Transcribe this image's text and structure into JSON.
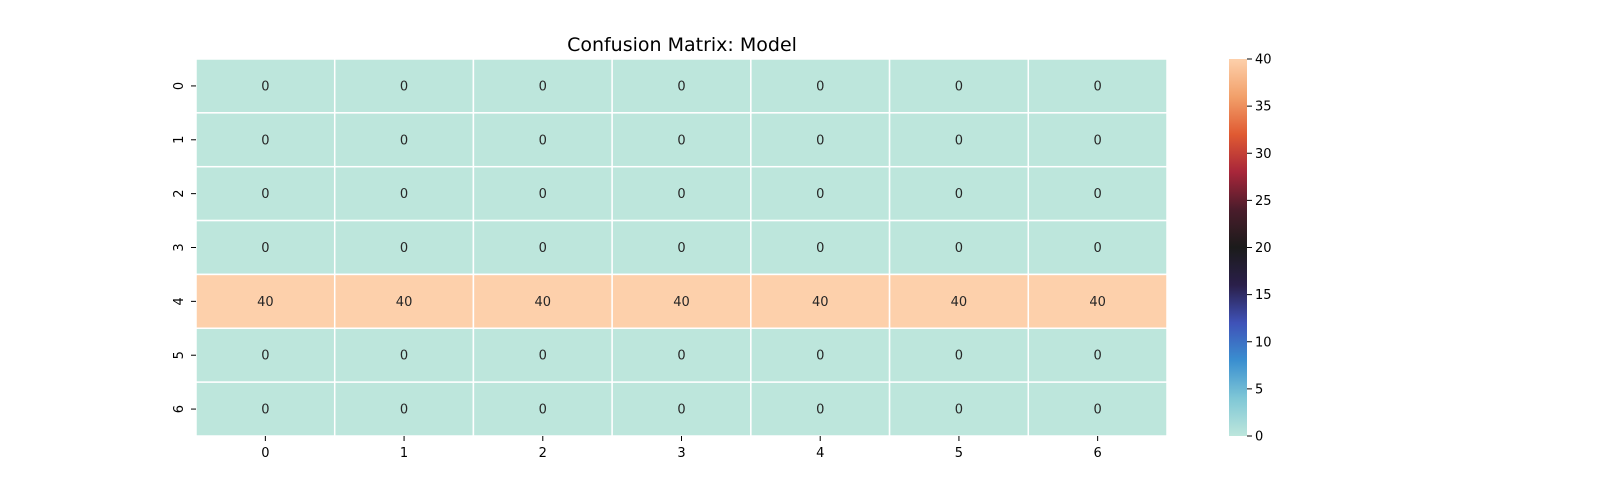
{
  "chart_data": {
    "type": "heatmap",
    "title": "Confusion Matrix: Model",
    "xlabel": "",
    "ylabel": "",
    "x_labels": [
      "0",
      "1",
      "2",
      "3",
      "4",
      "5",
      "6"
    ],
    "y_labels": [
      "0",
      "1",
      "2",
      "3",
      "4",
      "5",
      "6"
    ],
    "values": [
      [
        0,
        0,
        0,
        0,
        0,
        0,
        0
      ],
      [
        0,
        0,
        0,
        0,
        0,
        0,
        0
      ],
      [
        0,
        0,
        0,
        0,
        0,
        0,
        0
      ],
      [
        0,
        0,
        0,
        0,
        0,
        0,
        0
      ],
      [
        40,
        40,
        40,
        40,
        40,
        40,
        40
      ],
      [
        0,
        0,
        0,
        0,
        0,
        0,
        0
      ],
      [
        0,
        0,
        0,
        0,
        0,
        0,
        0
      ]
    ],
    "colorbar": {
      "range": [
        0,
        40
      ],
      "ticks": [
        0,
        5,
        10,
        15,
        20,
        25,
        30,
        35,
        40
      ],
      "colormap_stops": [
        "#bde6dc",
        "#7fc7d6",
        "#3a8fd0",
        "#3f52b8",
        "#2a1f4a",
        "#1b1b1b",
        "#4a1c2b",
        "#a8263a",
        "#e05a32",
        "#f2a06a",
        "#fdd0ab"
      ]
    },
    "grid_line_color": "#ffffff",
    "annotation_color": "#262626"
  }
}
